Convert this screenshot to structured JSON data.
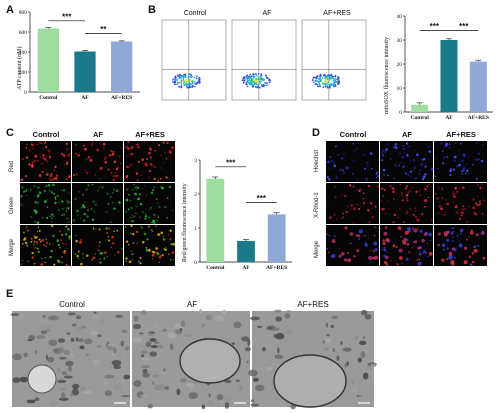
{
  "panels": {
    "A": "A",
    "B": "B",
    "C": "C",
    "D": "D",
    "E": "E"
  },
  "colors": {
    "control": "#9fdc9f",
    "af": "#1a7a8a",
    "af_res": "#8fa8d8"
  },
  "chart_data": [
    {
      "type": "bar",
      "panel": "A",
      "categories": [
        "Control",
        "AF",
        "AF+RES"
      ],
      "values": [
        635,
        405,
        505
      ],
      "errors": [
        8,
        10,
        6
      ],
      "ylabel": "ATP content (nM)",
      "ylim": [
        0,
        800
      ],
      "yticks": [
        "0",
        "200",
        "400",
        "600",
        "800"
      ],
      "significance": [
        "***",
        "**"
      ]
    },
    {
      "type": "bar",
      "panel": "B",
      "categories": [
        "Control",
        "AF",
        "AF+RES"
      ],
      "values": [
        3,
        30,
        21
      ],
      "errors": [
        0.8,
        0.5,
        0.6
      ],
      "ylabel": "mitoSOX fluorescence intensity",
      "ylim": [
        0,
        40
      ],
      "yticks": [
        "0",
        "10",
        "20",
        "30",
        "40"
      ],
      "significance": [
        "***",
        "***"
      ]
    },
    {
      "type": "bar",
      "panel": "C",
      "categories": [
        "Control",
        "AF",
        "AF+RES"
      ],
      "values": [
        2.45,
        0.62,
        1.4
      ],
      "errors": [
        0.05,
        0.04,
        0.05
      ],
      "ylabel": "Red/green fluorescence intensity",
      "ylim": [
        0,
        3
      ],
      "yticks": [
        "0",
        "1",
        "2",
        "3"
      ],
      "significance": [
        "***",
        "***"
      ]
    }
  ],
  "flow": {
    "titles": [
      "Control",
      "AF",
      "AF+RES"
    ]
  },
  "panelC": {
    "cols": [
      "Control",
      "AF",
      "AF+RES"
    ],
    "rows": [
      "Red",
      "Green",
      "Merge"
    ]
  },
  "panelD": {
    "cols": [
      "Control",
      "AF",
      "AF+RES"
    ],
    "rows": [
      "Hoechst",
      "X-Rhod-1",
      "Merge"
    ]
  },
  "panelE": {
    "cols": [
      "Control",
      "AF",
      "AF+RES"
    ]
  }
}
